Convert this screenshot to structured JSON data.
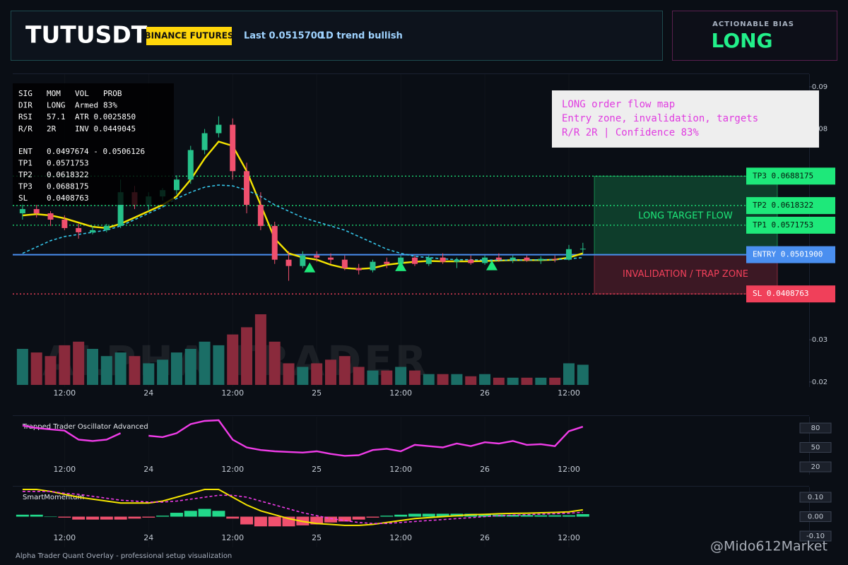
{
  "header": {
    "title": "TUTUSDT",
    "badge": "BINANCE FUTURES",
    "last": "Last 0.0515700",
    "trend": "1D trend bullish"
  },
  "bias": {
    "label": "ACTIONABLE BIAS",
    "value": "LONG"
  },
  "stats": [
    [
      "SIG",
      "MOM",
      "VOL",
      "PROB"
    ],
    [
      "DIR",
      "LONG",
      "Armed",
      "83%"
    ],
    [
      "RSI",
      "57.1",
      "ATR 0.0025850"
    ],
    [
      "R/R",
      "2R",
      "INV 0.0449045"
    ]
  ],
  "targets": [
    [
      "ENT",
      "0.0497674 - 0.0506126"
    ],
    [
      "TP1",
      "0.0571753"
    ],
    [
      "TP2",
      "0.0618322"
    ],
    [
      "TP3",
      "0.0688175"
    ],
    [
      "SL",
      "0.0408763"
    ]
  ],
  "note": [
    "LONG order flow map",
    "Entry zone, invalidation, targets",
    "R/R 2R | Confidence 83%"
  ],
  "watermark": "ALPHA TRADER",
  "credit": "@Mido612Market",
  "footer": "Alpha Trader Quant Overlay - professional setup visualization",
  "chart_data": [
    {
      "type": "candlestick",
      "x": [
        6,
        8,
        10,
        12,
        14,
        16,
        18,
        20,
        22,
        24,
        26,
        28,
        30,
        32,
        34,
        36,
        38,
        40,
        42,
        44,
        46,
        48,
        50,
        52,
        54,
        56,
        58,
        60,
        62,
        64,
        66,
        68,
        70,
        72,
        74,
        76,
        78,
        80,
        82,
        84,
        86
      ],
      "xlim": [
        4.6,
        118.3
      ],
      "xticks": [
        {
          "value": 12,
          "label": "12:00"
        },
        24,
        {
          "value": 36,
          "label": "12:00"
        },
        {
          "value": 48,
          "label": "25"
        },
        {
          "value": 60,
          "label": "12:00"
        },
        {
          "value": 72,
          "label": "26"
        },
        {
          "value": 84,
          "label": "12:00"
        }
      ],
      "ylim": [
        0.0188,
        0.093
      ],
      "yticks": [
        0.09,
        0.08,
        0.03,
        0.02
      ],
      "open": [
        0.06,
        0.061,
        0.06,
        0.0585,
        0.0565,
        0.0555,
        0.056,
        0.057,
        0.065,
        0.062,
        0.064,
        0.0655,
        0.068,
        0.075,
        0.079,
        0.081,
        0.07,
        0.062,
        0.057,
        0.049,
        0.0475,
        0.05,
        0.0495,
        0.049,
        0.047,
        0.0465,
        0.0485,
        0.048,
        0.0495,
        0.048,
        0.0495,
        0.0485,
        0.049,
        0.0482,
        0.0495,
        0.049,
        0.0495,
        0.0488,
        0.0492,
        0.049,
        0.0515
      ],
      "high": [
        0.0625,
        0.062,
        0.0605,
        0.0595,
        0.0575,
        0.057,
        0.0575,
        0.068,
        0.0665,
        0.065,
        0.066,
        0.069,
        0.076,
        0.08,
        0.083,
        0.0825,
        0.072,
        0.065,
        0.058,
        0.051,
        0.051,
        0.051,
        0.0505,
        0.05,
        0.048,
        0.049,
        0.0495,
        0.05,
        0.05,
        0.05,
        0.0505,
        0.0495,
        0.05,
        0.05,
        0.0505,
        0.05,
        0.05,
        0.0498,
        0.05,
        0.0525,
        0.053
      ],
      "low": [
        0.0585,
        0.059,
        0.057,
        0.056,
        0.054,
        0.055,
        0.0555,
        0.0565,
        0.061,
        0.0605,
        0.063,
        0.0645,
        0.067,
        0.074,
        0.078,
        0.068,
        0.06,
        0.056,
        0.048,
        0.044,
        0.047,
        0.0485,
        0.048,
        0.0465,
        0.0455,
        0.046,
        0.047,
        0.0475,
        0.0475,
        0.0475,
        0.048,
        0.047,
        0.0478,
        0.0478,
        0.0485,
        0.0482,
        0.0485,
        0.048,
        0.0484,
        0.0488,
        0.0505
      ],
      "close": [
        0.061,
        0.06,
        0.0585,
        0.0565,
        0.0555,
        0.056,
        0.057,
        0.065,
        0.062,
        0.064,
        0.0655,
        0.068,
        0.075,
        0.079,
        0.081,
        0.07,
        0.062,
        0.057,
        0.049,
        0.0475,
        0.05,
        0.0495,
        0.049,
        0.047,
        0.0465,
        0.0485,
        0.048,
        0.0495,
        0.048,
        0.0495,
        0.0485,
        0.049,
        0.0482,
        0.0495,
        0.049,
        0.0495,
        0.0488,
        0.0492,
        0.049,
        0.0515,
        0.0516
      ],
      "up_color": "#26c28a",
      "down_color": "#f0506e",
      "volume": [
        50,
        45,
        40,
        55,
        60,
        50,
        40,
        45,
        40,
        30,
        35,
        45,
        50,
        60,
        55,
        70,
        80,
        98,
        60,
        30,
        25,
        30,
        35,
        40,
        25,
        20,
        20,
        25,
        20,
        15,
        15,
        15,
        12,
        15,
        10,
        10,
        10,
        10,
        10,
        30,
        28
      ],
      "volume_up_color": "#1b6e66",
      "volume_down_color": "#8a2a3c",
      "series": [
        {
          "color": "#f5e400",
          "dashed": false,
          "values": [
            0.0595,
            0.0598,
            0.0595,
            0.0588,
            0.0578,
            0.0568,
            0.0565,
            0.0575,
            0.059,
            0.0605,
            0.062,
            0.064,
            0.068,
            0.073,
            0.077,
            0.076,
            0.07,
            0.062,
            0.054,
            0.0505,
            0.0495,
            0.049,
            0.0478,
            0.047,
            0.0468,
            0.047,
            0.0478,
            0.0482,
            0.0485,
            0.0487,
            0.0486,
            0.0486,
            0.0486,
            0.0487,
            0.0488,
            0.0489,
            0.0489,
            0.0489,
            0.049,
            0.0495,
            0.0505
          ]
        },
        {
          "color": "#35c4e8",
          "dashed": true,
          "values": [
            0.0505,
            0.052,
            0.0535,
            0.0545,
            0.055,
            0.0555,
            0.056,
            0.057,
            0.0585,
            0.06,
            0.0615,
            0.0635,
            0.065,
            0.0662,
            0.0667,
            0.0665,
            0.0655,
            0.064,
            0.062,
            0.0605,
            0.059,
            0.058,
            0.057,
            0.056,
            0.0545,
            0.053,
            0.0515,
            0.0505,
            0.0498,
            0.0495,
            0.0492,
            0.049,
            0.049,
            0.0489,
            0.0489,
            0.0489,
            0.0489,
            0.049,
            0.049,
            0.0492,
            0.0495
          ]
        }
      ],
      "signals": {
        "x": [
          47,
          60,
          73
        ],
        "values": [
          0.047,
          0.0473,
          0.0475
        ],
        "color": "#1ee87a"
      },
      "levels": {
        "names": [
          "TP3",
          "TP2",
          "TP1",
          "ENTRY",
          "SL"
        ],
        "values": [
          0.0688175,
          0.0618322,
          0.0571753,
          0.05019,
          0.0408763
        ],
        "value_labels": [
          "0.0688175",
          "0.0618322",
          "0.0571753",
          "0.0501900",
          "0.0408763"
        ],
        "colors": [
          "#1ee87a",
          "#1ee87a",
          "#1ee87a",
          "#4a8ff0",
          "#f0405a"
        ],
        "text_colors": [
          "#06180d",
          "#06180d",
          "#06180d",
          "#ffffff",
          "#ffffff"
        ]
      },
      "zones": [
        {
          "label": "LONG TARGET FLOW",
          "color": "#1ee87a"
        },
        {
          "label": "INVALIDATION / TRAP ZONE",
          "color": "#f0405a"
        }
      ]
    },
    {
      "type": "line",
      "title": "Trapped Trader Oscillator Advanced",
      "x": [
        6,
        8,
        10,
        12,
        14,
        16,
        18,
        20,
        22,
        24,
        26,
        28,
        30,
        32,
        34,
        36,
        38,
        40,
        42,
        44,
        46,
        48,
        50,
        52,
        54,
        56,
        58,
        60,
        62,
        64,
        66,
        68,
        70,
        72,
        74,
        76,
        78,
        80,
        82,
        84,
        86
      ],
      "xlim": [
        4.6,
        118.3
      ],
      "xticks": [
        {
          "value": 12,
          "label": "12:00"
        },
        24,
        {
          "value": 36,
          "label": "12:00"
        },
        {
          "value": 48,
          "label": "25"
        },
        {
          "value": 60,
          "label": "12:00"
        },
        {
          "value": 72,
          "label": "26"
        },
        {
          "value": 84,
          "label": "12:00"
        }
      ],
      "ylim": [
        8,
        97.5
      ],
      "yticks": [
        80,
        50,
        20
      ],
      "color": "#f03ce8",
      "values": [
        84,
        80,
        78,
        76,
        62,
        60,
        62,
        72,
        null,
        68,
        66,
        72,
        86,
        91,
        92,
        62,
        50,
        46,
        44,
        43,
        42,
        44,
        40,
        37,
        38,
        46,
        48,
        44,
        54,
        52,
        50,
        56,
        52,
        58,
        56,
        60,
        54,
        55,
        52,
        75,
        82
      ]
    },
    {
      "type": "macd",
      "title": "SmartMomentum",
      "x": [
        6,
        8,
        10,
        12,
        14,
        16,
        18,
        20,
        22,
        24,
        26,
        28,
        30,
        32,
        34,
        36,
        38,
        40,
        42,
        44,
        46,
        48,
        50,
        52,
        54,
        56,
        58,
        60,
        62,
        64,
        66,
        68,
        70,
        72,
        74,
        76,
        78,
        80,
        82,
        84,
        86
      ],
      "xlim": [
        4.6,
        118.3
      ],
      "xticks": [
        {
          "value": 12,
          "label": "12:00"
        },
        24,
        {
          "value": 36,
          "label": "12:00"
        },
        {
          "value": 48,
          "label": "25"
        },
        {
          "value": 60,
          "label": "12:00"
        },
        {
          "value": 72,
          "label": "26"
        },
        {
          "value": 84,
          "label": "12:00"
        }
      ],
      "ylim": [
        -0.158,
        0.151
      ],
      "yticks": [
        {
          "value": 0.1,
          "label": "0.10"
        },
        {
          "value": 0,
          "label": "0.00"
        },
        {
          "value": -0.1,
          "label": "-0.10"
        }
      ],
      "histogram": {
        "up_color": "#22d88a",
        "down_color": "#f0506e",
        "values": [
          0.01,
          0.01,
          0,
          -0.005,
          -0.015,
          -0.015,
          -0.015,
          -0.015,
          -0.01,
          -0.005,
          0.005,
          0.02,
          0.03,
          0.04,
          0.03,
          -0.01,
          -0.04,
          -0.05,
          -0.05,
          -0.05,
          -0.045,
          -0.04,
          -0.03,
          -0.025,
          -0.015,
          -0.005,
          0.005,
          0.01,
          0.015,
          0.015,
          0.015,
          0.015,
          0.015,
          0.012,
          0.01,
          0.009,
          0.008,
          0.007,
          0.007,
          0.007,
          0.013
        ]
      },
      "series": [
        {
          "color": "#f5e400",
          "dashed": false,
          "values": [
            0.14,
            0.14,
            0.13,
            0.115,
            0.1,
            0.09,
            0.08,
            0.07,
            0.07,
            0.07,
            0.08,
            0.1,
            0.12,
            0.14,
            0.14,
            0.1,
            0.06,
            0.03,
            0.01,
            -0.01,
            -0.025,
            -0.035,
            -0.04,
            -0.045,
            -0.045,
            -0.04,
            -0.03,
            -0.02,
            -0.01,
            -0.005,
            0,
            0.005,
            0.01,
            0.012,
            0.015,
            0.017,
            0.018,
            0.02,
            0.022,
            0.025,
            0.035
          ]
        },
        {
          "color": "#f03ce8",
          "dashed": true,
          "values": [
            0.13,
            0.13,
            0.13,
            0.12,
            0.115,
            0.105,
            0.095,
            0.085,
            0.08,
            0.075,
            0.075,
            0.08,
            0.09,
            0.1,
            0.11,
            0.11,
            0.1,
            0.08,
            0.06,
            0.04,
            0.02,
            0.005,
            -0.01,
            -0.02,
            -0.03,
            -0.035,
            -0.035,
            -0.03,
            -0.025,
            -0.02,
            -0.015,
            -0.01,
            -0.005,
            0,
            0.005,
            0.008,
            0.01,
            0.013,
            0.015,
            0.018,
            0.022
          ]
        }
      ]
    }
  ]
}
